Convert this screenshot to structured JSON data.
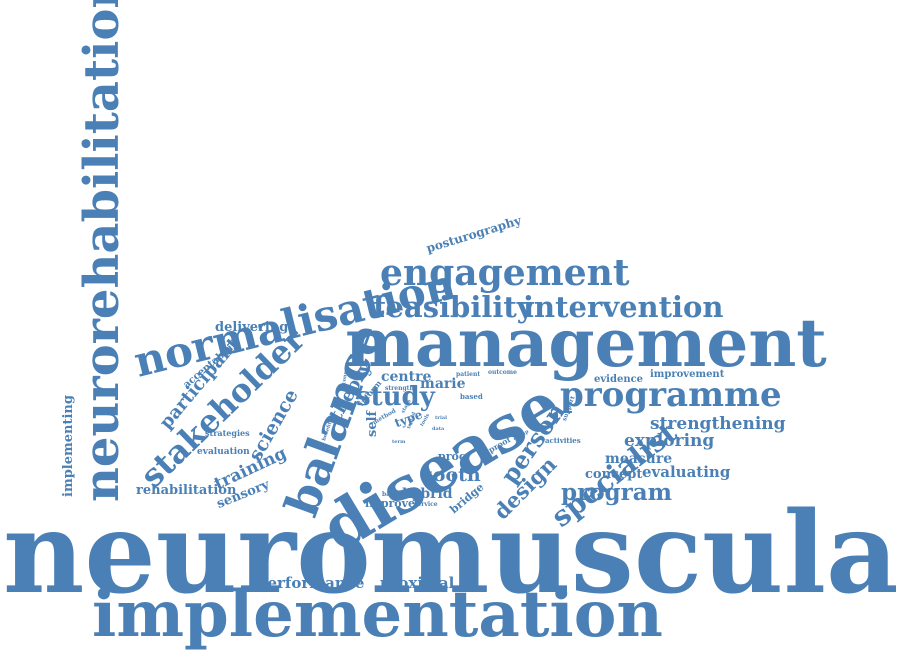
{
  "colors": {
    "word": "#4a80b5",
    "background": "#ffffff"
  },
  "words": [
    "neuromuscular",
    "implementation",
    "management",
    "disease",
    "neurorehabilitation",
    "balance",
    "normalisation",
    "engagement",
    "stakeholder",
    "programme",
    "intervention",
    "feasibility",
    "specialist",
    "person",
    "study",
    "design",
    "program",
    "tooth",
    "performance",
    "proximal",
    "strengthening",
    "exploring",
    "evaluating",
    "measure",
    "concept",
    "science",
    "participant",
    "training",
    "theory",
    "rehabilitation",
    "sensory",
    "implementing",
    "delivering",
    "posturography",
    "acceptability",
    "evaluation",
    "strategies",
    "hybrid",
    "improve",
    "bridge",
    "centre",
    "marie",
    "evidence",
    "improvement",
    "self",
    "type",
    "proc",
    "inform",
    "proof",
    "activities",
    "based",
    "patient",
    "outcome",
    "strength",
    "method",
    "barrier",
    "service",
    "support",
    "group",
    "trial",
    "connect",
    "stage",
    "tools",
    "data",
    "tested",
    "term",
    "benefit"
  ]
}
